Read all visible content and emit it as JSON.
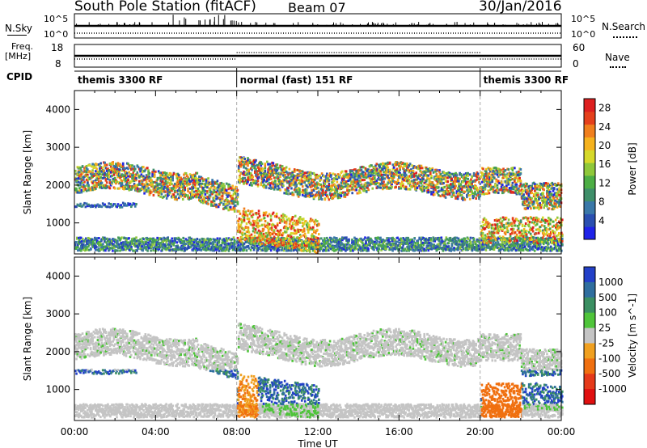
{
  "header": {
    "station": "South Pole Station (fitACF)",
    "beam": "Beam 07",
    "date": "30/Jan/2016"
  },
  "top_panels": {
    "nsky_label": "N.Sky",
    "nsky_ticks": [
      "10^5",
      "10^0"
    ],
    "nsearch_label": "N.Search",
    "nsearch_ticks": [
      "10^5",
      "10^0"
    ],
    "freq_label": "Freq.",
    "freq_unit": "[MHz]",
    "freq_ticks": [
      "18",
      "8"
    ],
    "nave_label": "Nave",
    "nave_ticks": [
      "60",
      "0"
    ],
    "cpid_label": "CPID",
    "cpid_segments": [
      {
        "label": "themis 3300 RF",
        "start_h": 0,
        "end_h": 8
      },
      {
        "label": "normal (fast) 151 RF",
        "start_h": 8,
        "end_h": 20
      },
      {
        "label": "themis 3300 RF",
        "start_h": 20,
        "end_h": 24
      }
    ]
  },
  "chart_data": [
    {
      "type": "heatmap",
      "title": "Power",
      "xlabel": "Time UT",
      "ylabel": "Slant Range [km]",
      "x_ticks": [
        "00:00",
        "04:00",
        "08:00",
        "12:00",
        "16:00",
        "20:00",
        "00:00"
      ],
      "xlim": [
        0,
        24
      ],
      "y_ticks": [
        1000,
        2000,
        3000,
        4000
      ],
      "ylim": [
        180,
        4500
      ],
      "colorbar_label": "Power [dB]",
      "colorbar_ticks": [
        4,
        8,
        12,
        16,
        20,
        24,
        28
      ],
      "colorbar_range": [
        0,
        30
      ],
      "colors": [
        "#1f23e8",
        "#2a4fb0",
        "#3a78a8",
        "#3f8f6a",
        "#4dae45",
        "#8fc83a",
        "#d6d92a",
        "#f5b21e",
        "#f07f1d",
        "#e5401c",
        "#dd1f1f"
      ]
    },
    {
      "type": "heatmap",
      "title": "Velocity",
      "xlabel": "Time UT",
      "ylabel": "Slant Range [km]",
      "x_ticks": [
        "00:00",
        "04:00",
        "08:00",
        "12:00",
        "16:00",
        "20:00",
        "00:00"
      ],
      "xlim": [
        0,
        24
      ],
      "y_ticks": [
        1000,
        2000,
        3000,
        4000
      ],
      "ylim": [
        180,
        4500
      ],
      "colorbar_label": "Velocity [m s^-1]",
      "colorbar_ticks": [
        "1000",
        "500",
        "100",
        "25",
        "-25",
        "-100",
        "-500",
        "-1000"
      ],
      "colors": [
        "#2340c8",
        "#2f6e9e",
        "#3b8f62",
        "#4fc43a",
        "#c4c4c4",
        "#f0a020",
        "#f07010",
        "#e53a1a",
        "#e01010"
      ]
    }
  ]
}
